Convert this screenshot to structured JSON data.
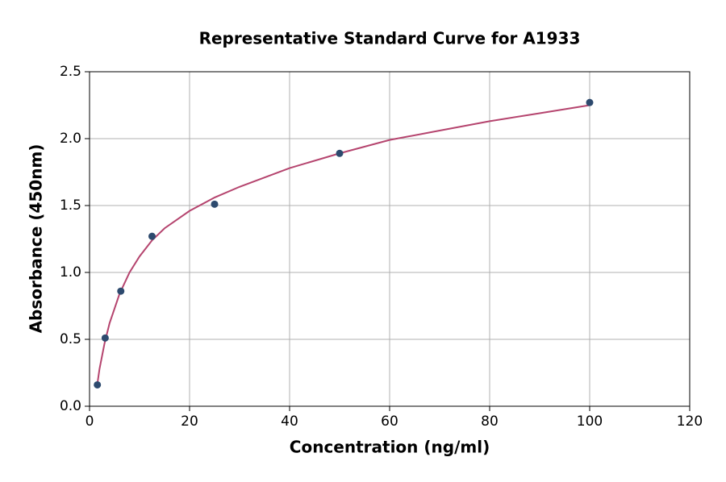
{
  "chart_data": {
    "type": "scatter",
    "title": "Representative Standard Curve for A1933",
    "xlabel": "Concentration (ng/ml)",
    "ylabel": "Absorbance (450nm)",
    "xlim": [
      0,
      120
    ],
    "xticks": [
      0,
      20,
      40,
      60,
      80,
      100,
      120
    ],
    "ylim": [
      0,
      2.5
    ],
    "yticks": [
      {
        "value": 0,
        "label": "0.0"
      },
      0.5,
      {
        "value": 1,
        "label": "1.0"
      },
      1.5,
      {
        "value": 2,
        "label": "2.0"
      },
      2.5
    ],
    "grid": true,
    "series": [
      {
        "style": "line",
        "color": "#b5446e",
        "x": [
          1.5,
          2,
          3,
          4,
          6,
          8,
          10,
          12.5,
          15,
          20,
          25,
          30,
          40,
          50,
          60,
          70,
          80,
          90,
          100
        ],
        "values": [
          0.15,
          0.28,
          0.47,
          0.62,
          0.84,
          1.0,
          1.12,
          1.24,
          1.33,
          1.46,
          1.56,
          1.64,
          1.78,
          1.89,
          1.99,
          2.06,
          2.13,
          2.19,
          2.25
        ]
      },
      {
        "style": "markers",
        "color": "#2d4a6e",
        "x": [
          1.563,
          3.125,
          6.25,
          12.5,
          25,
          50,
          100
        ],
        "values": [
          0.16,
          0.51,
          0.86,
          1.27,
          1.51,
          1.89,
          2.27
        ]
      }
    ]
  }
}
